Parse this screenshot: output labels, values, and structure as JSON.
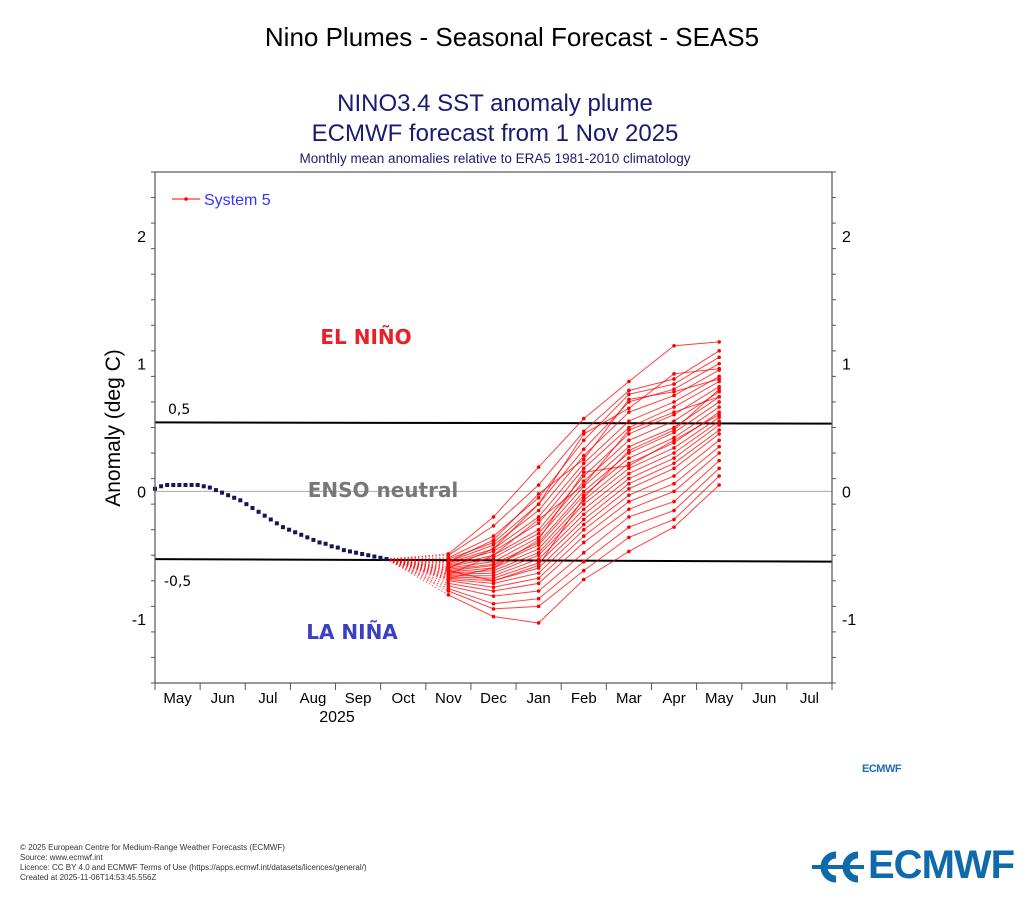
{
  "page": {
    "title": "Nino Plumes - Seasonal Forecast - SEAS5"
  },
  "chart_data": {
    "type": "line",
    "title": "NINO3.4 SST anomaly plume",
    "subtitle": "ECMWF forecast from 1 Nov 2025",
    "caption": "Monthly mean anomalies relative to ERA5 1981-2010 climatology",
    "ylabel": "Anomaly (deg C)",
    "xlabel": "2025",
    "ylim": [
      -1.5,
      2.5
    ],
    "yticks": [
      -1,
      0,
      1,
      2
    ],
    "ytick_labels": [
      "-1",
      "0",
      "1",
      "2"
    ],
    "x_tick_labels": [
      "May",
      "Jun",
      "Jul",
      "Aug",
      "Sep",
      "Oct",
      "Nov",
      "Dec",
      "Jan",
      "Feb",
      "Mar",
      "Apr",
      "May",
      "Jun",
      "Jul"
    ],
    "xlim_months": [
      0,
      15
    ],
    "grid": false,
    "legend": {
      "placement": "top-left",
      "entries": [
        "System 5"
      ]
    },
    "colors": {
      "forecast": "#ff0000",
      "observed": "#14145a",
      "legend_text": "#3333ff",
      "el_nino": "#e8202a",
      "la_nina": "#3b3fc2",
      "neutral": "#777777"
    },
    "annotations": {
      "el_nino": "EL NIÑO",
      "la_nina": "LA NIÑA",
      "neutral": "ENSO neutral",
      "upper_threshold_label": "0,5",
      "lower_threshold_label": "-0,5"
    },
    "thresholds": [
      {
        "label": "0,5",
        "start": 0.54,
        "end": 0.53
      },
      {
        "label": "-0,5",
        "start": -0.53,
        "end": -0.55
      }
    ],
    "observed": {
      "name": "Observed",
      "x_start": 0.0,
      "x_step": 0.135,
      "values": [
        0.02,
        0.04,
        0.05,
        0.05,
        0.05,
        0.05,
        0.05,
        0.05,
        0.04,
        0.03,
        0.01,
        -0.01,
        -0.03,
        -0.05,
        -0.07,
        -0.1,
        -0.13,
        -0.16,
        -0.19,
        -0.22,
        -0.25,
        -0.28,
        -0.3,
        -0.32,
        -0.34,
        -0.36,
        -0.38,
        -0.4,
        -0.41,
        -0.43,
        -0.44,
        -0.46,
        -0.47,
        -0.48,
        -0.49,
        -0.5,
        -0.51,
        -0.52,
        -0.53
      ]
    },
    "forecast": {
      "name": "System 5",
      "x": [
        6.5,
        7.5,
        8.5,
        9.5,
        10.5,
        11.5,
        12.5
      ],
      "members": [
        [
          -0.49,
          -0.2,
          0.19,
          0.57,
          0.86,
          1.14,
          1.17
        ],
        [
          -0.5,
          -0.27,
          0.05,
          0.47,
          0.79,
          0.88,
          1.1
        ],
        [
          -0.52,
          -0.35,
          -0.05,
          0.4,
          0.76,
          0.84,
          1.05
        ],
        [
          -0.53,
          -0.4,
          -0.1,
          0.33,
          0.7,
          0.8,
          1.0
        ],
        [
          -0.55,
          -0.42,
          -0.15,
          0.28,
          0.62,
          0.75,
          0.95
        ],
        [
          -0.56,
          -0.45,
          -0.2,
          0.22,
          0.55,
          0.7,
          0.9
        ],
        [
          -0.57,
          -0.47,
          -0.25,
          0.18,
          0.5,
          0.66,
          0.86
        ],
        [
          -0.58,
          -0.5,
          -0.3,
          0.12,
          0.45,
          0.6,
          0.82
        ],
        [
          -0.59,
          -0.52,
          -0.33,
          0.08,
          0.4,
          0.55,
          0.78
        ],
        [
          -0.6,
          -0.55,
          -0.36,
          0.04,
          0.35,
          0.5,
          0.74
        ],
        [
          -0.61,
          -0.57,
          -0.4,
          0.0,
          0.3,
          0.46,
          0.7
        ],
        [
          -0.62,
          -0.58,
          -0.42,
          -0.03,
          0.26,
          0.42,
          0.66
        ],
        [
          -0.63,
          -0.6,
          -0.45,
          -0.07,
          0.22,
          0.38,
          0.62
        ],
        [
          -0.64,
          -0.62,
          -0.48,
          -0.1,
          0.18,
          0.34,
          0.58
        ],
        [
          -0.65,
          -0.64,
          -0.5,
          -0.14,
          0.14,
          0.3,
          0.55
        ],
        [
          -0.66,
          -0.66,
          -0.53,
          -0.18,
          0.1,
          0.26,
          0.52
        ],
        [
          -0.67,
          -0.68,
          -0.56,
          -0.22,
          0.06,
          0.22,
          0.48
        ],
        [
          -0.68,
          -0.7,
          -0.6,
          -0.26,
          0.02,
          0.18,
          0.45
        ],
        [
          -0.69,
          -0.72,
          -0.64,
          -0.3,
          -0.03,
          0.12,
          0.4
        ],
        [
          -0.7,
          -0.75,
          -0.68,
          -0.35,
          -0.08,
          0.06,
          0.35
        ],
        [
          -0.72,
          -0.78,
          -0.72,
          -0.4,
          -0.14,
          0.0,
          0.3
        ],
        [
          -0.74,
          -0.82,
          -0.78,
          -0.48,
          -0.2,
          -0.08,
          0.24
        ],
        [
          -0.76,
          -0.88,
          -0.84,
          -0.55,
          -0.28,
          -0.15,
          0.18
        ],
        [
          -0.78,
          -0.92,
          -0.9,
          -0.62,
          -0.36,
          -0.22,
          0.12
        ],
        [
          -0.81,
          -0.98,
          -1.03,
          -0.69,
          -0.47,
          -0.28,
          0.05
        ],
        [
          -0.6,
          -0.45,
          -0.1,
          0.45,
          0.65,
          0.92,
          0.96
        ],
        [
          -0.55,
          -0.38,
          -0.02,
          0.25,
          0.72,
          0.78,
          0.88
        ],
        [
          -0.65,
          -0.5,
          -0.22,
          0.05,
          0.48,
          0.62,
          0.74
        ],
        [
          -0.62,
          -0.7,
          -0.58,
          -0.05,
          0.32,
          0.48,
          0.8
        ],
        [
          -0.68,
          -0.6,
          -0.38,
          0.15,
          0.2,
          0.4,
          0.6
        ]
      ]
    }
  },
  "footer": {
    "lines": [
      "© 2025 European Centre for Medium-Range Weather Forecasts (ECMWF)",
      "Source: www.ecmwf.int",
      "Licence: CC BY 4.0 and ECMWF Terms of Use (https://apps.ecmwf.int/datasets/licences/general/)",
      "Created at 2025-11-06T14:53:45.556Z"
    ]
  },
  "logos": {
    "small": "ECMWF",
    "large": "ECMWF"
  }
}
